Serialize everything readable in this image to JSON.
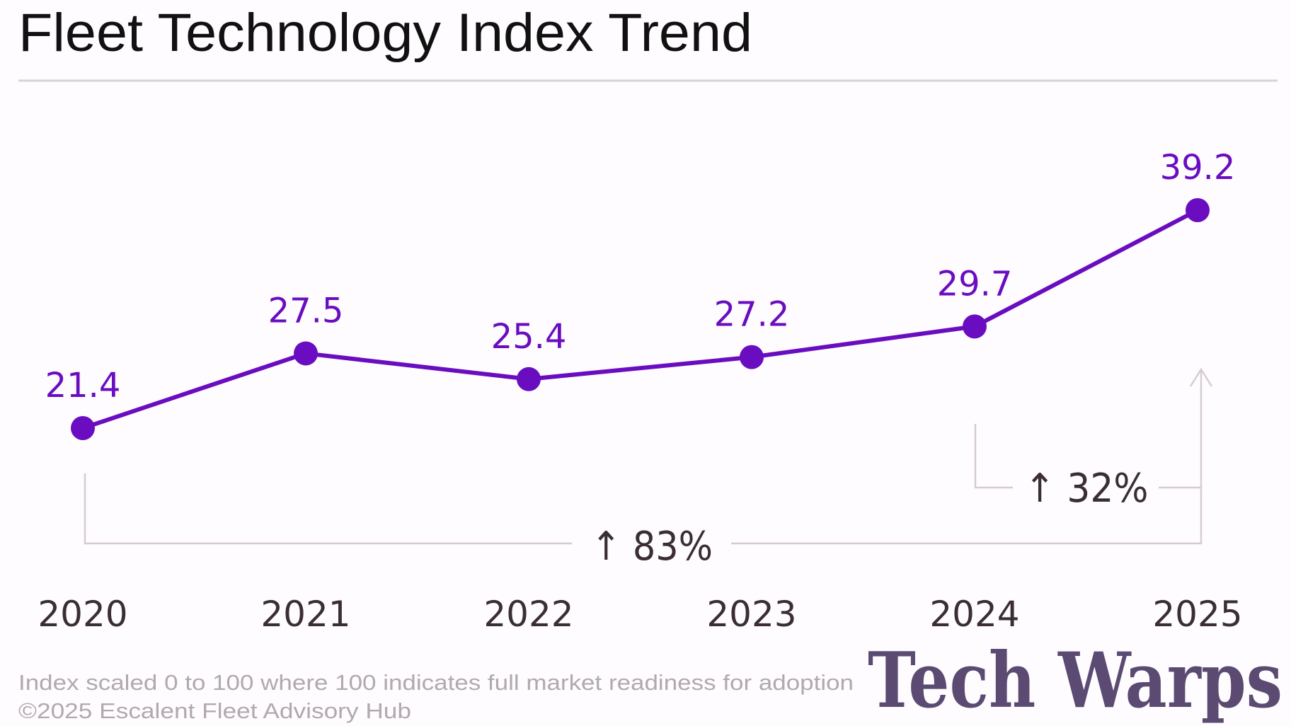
{
  "chart_data": {
    "type": "line",
    "title": "Fleet Technology Index Trend",
    "categories": [
      "2020",
      "2021",
      "2022",
      "2023",
      "2024",
      "2025"
    ],
    "series": [
      {
        "values": [
          21.4,
          27.5,
          25.4,
          27.2,
          29.7,
          39.2
        ]
      }
    ],
    "data_labels": [
      "21.4",
      "27.5",
      "25.4",
      "27.2",
      "29.7",
      "39.2"
    ],
    "annotations": [
      {
        "text": "↑ 83%",
        "from": "2020",
        "to": "2025"
      },
      {
        "text": "↑ 32%",
        "from": "2024",
        "to": "2025"
      }
    ],
    "xlabel": "",
    "ylabel": "",
    "grid": false,
    "color": "#6a0dc0"
  },
  "footnotes": {
    "scale_note": "Index scaled 0 to 100 where 100 indicates full market readiness for adoption",
    "copyright": "©2025 Escalent Fleet Advisory Hub"
  },
  "watermark": "Tech Warps"
}
